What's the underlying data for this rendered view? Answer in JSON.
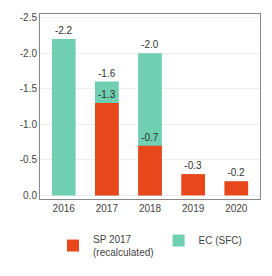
{
  "chart_data": {
    "type": "bar",
    "categories": [
      "2016",
      "2017",
      "2018",
      "2019",
      "2020"
    ],
    "series": [
      {
        "name": "EC (SFC)",
        "color": "#6fcfb0",
        "values": [
          -2.2,
          -1.6,
          -2.0,
          null,
          null
        ],
        "value_labels": [
          "-2.2",
          "-1.6",
          "-2.0",
          null,
          null
        ]
      },
      {
        "name": "SP 2017\n(recalculated)",
        "color": "#e8471c",
        "values": [
          null,
          -1.3,
          -0.7,
          -0.3,
          -0.2
        ]
      }
    ],
    "ylim": [
      0.05,
      -2.55
    ],
    "yticks": [
      -2.5,
      {
        "value": -2,
        "label": "-2.0"
      },
      -1.5,
      {
        "value": -1,
        "label": "-1.0"
      },
      -0.5,
      {
        "value": 0,
        "label": "0.0"
      }
    ],
    "grid": true,
    "data_labels": true,
    "legend": "bottom"
  }
}
